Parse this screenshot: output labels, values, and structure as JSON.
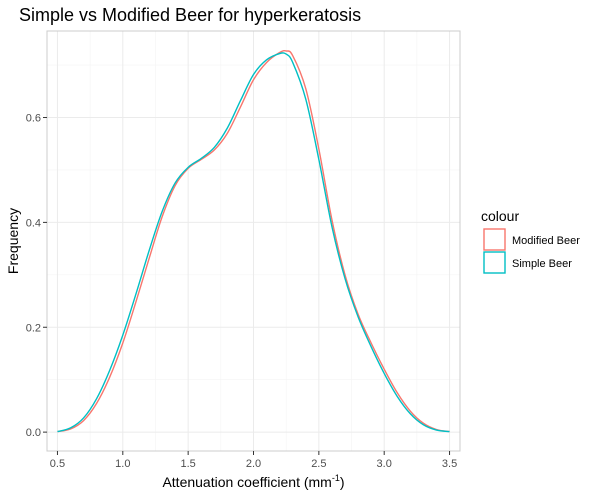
{
  "chart_data": {
    "type": "line",
    "title": "Simple vs Modified Beer for hyperkeratosis",
    "xlabel_main": "Attenuation coefficient (mm",
    "xlabel_sup": "-1",
    "xlabel_end": ")",
    "ylabel": "Frequency",
    "xlim": [
      0.42,
      3.58
    ],
    "ylim": [
      -0.036,
      0.765
    ],
    "x_ticks": [
      0.5,
      1.0,
      1.5,
      2.0,
      2.5,
      3.0,
      3.5
    ],
    "x_tick_labels": [
      "0.5",
      "1.0",
      "1.5",
      "2.0",
      "2.5",
      "3.0",
      "3.5"
    ],
    "y_ticks": [
      0.0,
      0.2,
      0.4,
      0.6
    ],
    "y_tick_labels": [
      "0.0",
      "0.2",
      "0.4",
      "0.6"
    ],
    "grid": true,
    "legend": {
      "title": "colour",
      "position": "right"
    },
    "series": [
      {
        "name": "Modified Beer",
        "color": "#F8766D",
        "points": [
          [
            0.5,
            0.001
          ],
          [
            0.6,
            0.006
          ],
          [
            0.7,
            0.022
          ],
          [
            0.8,
            0.055
          ],
          [
            0.9,
            0.105
          ],
          [
            1.0,
            0.17
          ],
          [
            1.1,
            0.248
          ],
          [
            1.2,
            0.33
          ],
          [
            1.3,
            0.41
          ],
          [
            1.4,
            0.47
          ],
          [
            1.5,
            0.503
          ],
          [
            1.6,
            0.52
          ],
          [
            1.7,
            0.538
          ],
          [
            1.8,
            0.57
          ],
          [
            1.9,
            0.62
          ],
          [
            2.0,
            0.672
          ],
          [
            2.1,
            0.705
          ],
          [
            2.2,
            0.724
          ],
          [
            2.25,
            0.727
          ],
          [
            2.3,
            0.718
          ],
          [
            2.4,
            0.655
          ],
          [
            2.5,
            0.54
          ],
          [
            2.6,
            0.405
          ],
          [
            2.7,
            0.3
          ],
          [
            2.8,
            0.225
          ],
          [
            2.9,
            0.17
          ],
          [
            3.0,
            0.12
          ],
          [
            3.1,
            0.075
          ],
          [
            3.2,
            0.04
          ],
          [
            3.3,
            0.017
          ],
          [
            3.4,
            0.005
          ],
          [
            3.5,
            0.001
          ]
        ]
      },
      {
        "name": "Simple Beer",
        "color": "#00BFC4",
        "points": [
          [
            0.5,
            0.001
          ],
          [
            0.6,
            0.008
          ],
          [
            0.7,
            0.027
          ],
          [
            0.8,
            0.064
          ],
          [
            0.9,
            0.118
          ],
          [
            1.0,
            0.185
          ],
          [
            1.1,
            0.263
          ],
          [
            1.2,
            0.345
          ],
          [
            1.3,
            0.42
          ],
          [
            1.4,
            0.475
          ],
          [
            1.5,
            0.505
          ],
          [
            1.6,
            0.522
          ],
          [
            1.7,
            0.543
          ],
          [
            1.8,
            0.58
          ],
          [
            1.9,
            0.632
          ],
          [
            2.0,
            0.682
          ],
          [
            2.1,
            0.71
          ],
          [
            2.2,
            0.722
          ],
          [
            2.25,
            0.721
          ],
          [
            2.3,
            0.705
          ],
          [
            2.4,
            0.635
          ],
          [
            2.5,
            0.52
          ],
          [
            2.6,
            0.392
          ],
          [
            2.7,
            0.293
          ],
          [
            2.8,
            0.22
          ],
          [
            2.9,
            0.163
          ],
          [
            3.0,
            0.112
          ],
          [
            3.1,
            0.068
          ],
          [
            3.2,
            0.035
          ],
          [
            3.3,
            0.014
          ],
          [
            3.4,
            0.004
          ],
          [
            3.5,
            0.001
          ]
        ]
      }
    ]
  }
}
